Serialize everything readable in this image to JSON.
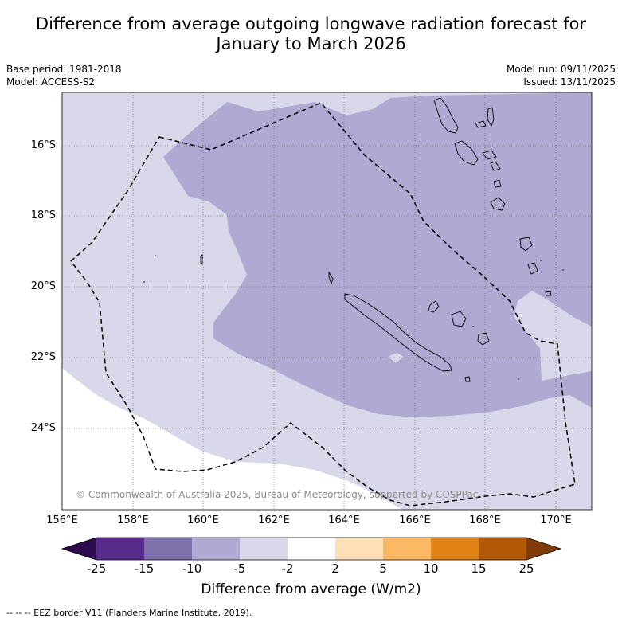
{
  "title_line1": "Difference from average outgoing longwave radiation forecast for",
  "title_line2": "January to March 2026",
  "meta_left": {
    "base_period": "Base period: 1981-2018",
    "model": "Model: ACCESS-S2"
  },
  "meta_right": {
    "model_run": "Model run: 09/11/2025",
    "issued": "Issued: 13/11/2025"
  },
  "lat_labels": [
    "16°S",
    "18°S",
    "20°S",
    "22°S",
    "24°S"
  ],
  "lon_labels": [
    "156°E",
    "158°E",
    "160°E",
    "162°E",
    "164°E",
    "166°E",
    "168°E",
    "170°E"
  ],
  "copyright": "© Commonwealth of Australia 2025, Bureau of Meteorology, supported by COSPPac",
  "colorbar": {
    "ticks": [
      "-25",
      "-15",
      "-10",
      "-5",
      "-2",
      "2",
      "5",
      "10",
      "15",
      "25"
    ],
    "label": "Difference from average (W/m2)",
    "colors": {
      "below_min": "#2d0b4e",
      "c1": "#582a8c",
      "c2": "#7f71ab",
      "c3": "#b0a9d2",
      "c4": "#d8d8ea",
      "c5": "#ffffff",
      "c6": "#fde0b6",
      "c7": "#fdb863",
      "c8": "#e08214",
      "c9": "#b35806",
      "above_max": "#7f3b08"
    }
  },
  "eez_note": "--  --  -- EEZ border V11 (Flanders Marine Institute, 2019)."
}
